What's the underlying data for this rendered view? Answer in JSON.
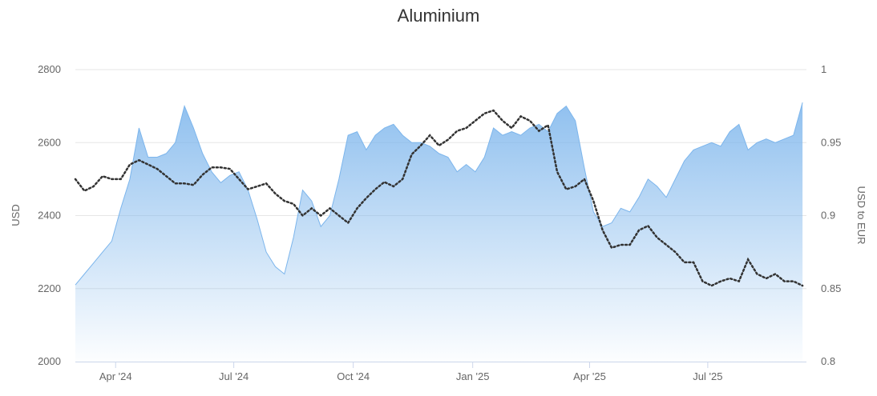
{
  "chart_data": {
    "type": "area",
    "title": "Aluminium",
    "grid": true,
    "legend": "none",
    "x_axis": {
      "range": [
        "2024-03-01",
        "2025-09-15"
      ],
      "ticks": [
        {
          "date": "2024-04-01",
          "label": "Apr '24"
        },
        {
          "date": "2024-07-01",
          "label": "Jul '24"
        },
        {
          "date": "2024-10-01",
          "label": "Oct '24"
        },
        {
          "date": "2025-01-01",
          "label": "Jan '25"
        },
        {
          "date": "2025-04-01",
          "label": "Apr '25"
        },
        {
          "date": "2025-07-01",
          "label": "Jul '25"
        }
      ]
    },
    "y_axis_left": {
      "title": "USD",
      "range": [
        2000,
        2800
      ],
      "ticks": [
        2000,
        2200,
        2400,
        2600,
        2800
      ]
    },
    "y_axis_right": {
      "title": "USD to EUR",
      "range": [
        0.8,
        1
      ],
      "ticks": [
        "0.8",
        "0.85",
        "0.9",
        "0.95",
        "1"
      ]
    },
    "series": [
      {
        "axis": "left",
        "style": "area",
        "color": "#7cb5ec",
        "points": [
          [
            "2024-03-01",
            2210
          ],
          [
            "2024-03-08",
            2240
          ],
          [
            "2024-03-15",
            2270
          ],
          [
            "2024-03-22",
            2300
          ],
          [
            "2024-03-29",
            2330
          ],
          [
            "2024-04-05",
            2420
          ],
          [
            "2024-04-12",
            2500
          ],
          [
            "2024-04-19",
            2640
          ],
          [
            "2024-04-26",
            2560
          ],
          [
            "2024-05-03",
            2560
          ],
          [
            "2024-05-10",
            2570
          ],
          [
            "2024-05-17",
            2600
          ],
          [
            "2024-05-24",
            2700
          ],
          [
            "2024-05-31",
            2640
          ],
          [
            "2024-06-07",
            2570
          ],
          [
            "2024-06-14",
            2520
          ],
          [
            "2024-06-21",
            2490
          ],
          [
            "2024-06-28",
            2510
          ],
          [
            "2024-07-05",
            2520
          ],
          [
            "2024-07-12",
            2470
          ],
          [
            "2024-07-19",
            2390
          ],
          [
            "2024-07-26",
            2300
          ],
          [
            "2024-08-02",
            2260
          ],
          [
            "2024-08-09",
            2240
          ],
          [
            "2024-08-16",
            2340
          ],
          [
            "2024-08-23",
            2470
          ],
          [
            "2024-08-30",
            2440
          ],
          [
            "2024-09-06",
            2370
          ],
          [
            "2024-09-13",
            2400
          ],
          [
            "2024-09-20",
            2500
          ],
          [
            "2024-09-27",
            2620
          ],
          [
            "2024-10-04",
            2630
          ],
          [
            "2024-10-11",
            2580
          ],
          [
            "2024-10-18",
            2620
          ],
          [
            "2024-10-25",
            2640
          ],
          [
            "2024-11-01",
            2650
          ],
          [
            "2024-11-08",
            2620
          ],
          [
            "2024-11-15",
            2600
          ],
          [
            "2024-11-22",
            2600
          ],
          [
            "2024-11-29",
            2590
          ],
          [
            "2024-12-06",
            2570
          ],
          [
            "2024-12-13",
            2560
          ],
          [
            "2024-12-20",
            2520
          ],
          [
            "2024-12-27",
            2540
          ],
          [
            "2025-01-03",
            2520
          ],
          [
            "2025-01-10",
            2560
          ],
          [
            "2025-01-17",
            2640
          ],
          [
            "2025-01-24",
            2620
          ],
          [
            "2025-01-31",
            2630
          ],
          [
            "2025-02-07",
            2620
          ],
          [
            "2025-02-14",
            2640
          ],
          [
            "2025-02-21",
            2650
          ],
          [
            "2025-02-28",
            2630
          ],
          [
            "2025-03-07",
            2680
          ],
          [
            "2025-03-14",
            2700
          ],
          [
            "2025-03-21",
            2660
          ],
          [
            "2025-03-28",
            2530
          ],
          [
            "2025-04-04",
            2410
          ],
          [
            "2025-04-11",
            2370
          ],
          [
            "2025-04-18",
            2380
          ],
          [
            "2025-04-25",
            2420
          ],
          [
            "2025-05-02",
            2410
          ],
          [
            "2025-05-09",
            2450
          ],
          [
            "2025-05-16",
            2500
          ],
          [
            "2025-05-23",
            2480
          ],
          [
            "2025-05-30",
            2450
          ],
          [
            "2025-06-06",
            2500
          ],
          [
            "2025-06-13",
            2550
          ],
          [
            "2025-06-20",
            2580
          ],
          [
            "2025-06-27",
            2590
          ],
          [
            "2025-07-04",
            2600
          ],
          [
            "2025-07-11",
            2590
          ],
          [
            "2025-07-18",
            2630
          ],
          [
            "2025-07-25",
            2650
          ],
          [
            "2025-08-01",
            2580
          ],
          [
            "2025-08-08",
            2600
          ],
          [
            "2025-08-15",
            2610
          ],
          [
            "2025-08-22",
            2600
          ],
          [
            "2025-08-29",
            2610
          ],
          [
            "2025-09-05",
            2620
          ],
          [
            "2025-09-12",
            2710
          ]
        ]
      },
      {
        "axis": "right",
        "style": "dotted-line",
        "color": "#333333",
        "points": [
          [
            "2024-03-01",
            0.925
          ],
          [
            "2024-03-08",
            0.917
          ],
          [
            "2024-03-15",
            0.92
          ],
          [
            "2024-03-22",
            0.927
          ],
          [
            "2024-03-29",
            0.925
          ],
          [
            "2024-04-05",
            0.925
          ],
          [
            "2024-04-12",
            0.935
          ],
          [
            "2024-04-19",
            0.938
          ],
          [
            "2024-04-26",
            0.935
          ],
          [
            "2024-05-03",
            0.932
          ],
          [
            "2024-05-10",
            0.927
          ],
          [
            "2024-05-17",
            0.922
          ],
          [
            "2024-05-24",
            0.922
          ],
          [
            "2024-05-31",
            0.921
          ],
          [
            "2024-06-07",
            0.928
          ],
          [
            "2024-06-14",
            0.933
          ],
          [
            "2024-06-21",
            0.933
          ],
          [
            "2024-06-28",
            0.932
          ],
          [
            "2024-07-05",
            0.925
          ],
          [
            "2024-07-12",
            0.918
          ],
          [
            "2024-07-19",
            0.92
          ],
          [
            "2024-07-26",
            0.922
          ],
          [
            "2024-08-02",
            0.915
          ],
          [
            "2024-08-09",
            0.91
          ],
          [
            "2024-08-16",
            0.908
          ],
          [
            "2024-08-23",
            0.9
          ],
          [
            "2024-08-30",
            0.905
          ],
          [
            "2024-09-06",
            0.9
          ],
          [
            "2024-09-13",
            0.905
          ],
          [
            "2024-09-20",
            0.9
          ],
          [
            "2024-09-27",
            0.895
          ],
          [
            "2024-10-04",
            0.905
          ],
          [
            "2024-10-11",
            0.912
          ],
          [
            "2024-10-18",
            0.918
          ],
          [
            "2024-10-25",
            0.923
          ],
          [
            "2024-11-01",
            0.92
          ],
          [
            "2024-11-08",
            0.925
          ],
          [
            "2024-11-15",
            0.942
          ],
          [
            "2024-11-22",
            0.948
          ],
          [
            "2024-11-29",
            0.955
          ],
          [
            "2024-12-06",
            0.948
          ],
          [
            "2024-12-13",
            0.952
          ],
          [
            "2024-12-20",
            0.958
          ],
          [
            "2024-12-27",
            0.96
          ],
          [
            "2025-01-03",
            0.965
          ],
          [
            "2025-01-10",
            0.97
          ],
          [
            "2025-01-17",
            0.972
          ],
          [
            "2025-01-24",
            0.965
          ],
          [
            "2025-01-31",
            0.96
          ],
          [
            "2025-02-07",
            0.968
          ],
          [
            "2025-02-14",
            0.965
          ],
          [
            "2025-02-21",
            0.958
          ],
          [
            "2025-02-28",
            0.962
          ],
          [
            "2025-03-07",
            0.93
          ],
          [
            "2025-03-14",
            0.918
          ],
          [
            "2025-03-21",
            0.92
          ],
          [
            "2025-03-28",
            0.925
          ],
          [
            "2025-04-04",
            0.91
          ],
          [
            "2025-04-11",
            0.89
          ],
          [
            "2025-04-18",
            0.878
          ],
          [
            "2025-04-25",
            0.88
          ],
          [
            "2025-05-02",
            0.88
          ],
          [
            "2025-05-09",
            0.89
          ],
          [
            "2025-05-16",
            0.893
          ],
          [
            "2025-05-23",
            0.885
          ],
          [
            "2025-05-30",
            0.88
          ],
          [
            "2025-06-06",
            0.875
          ],
          [
            "2025-06-13",
            0.868
          ],
          [
            "2025-06-20",
            0.868
          ],
          [
            "2025-06-27",
            0.855
          ],
          [
            "2025-07-04",
            0.852
          ],
          [
            "2025-07-11",
            0.855
          ],
          [
            "2025-07-18",
            0.857
          ],
          [
            "2025-07-25",
            0.855
          ],
          [
            "2025-08-01",
            0.87
          ],
          [
            "2025-08-08",
            0.86
          ],
          [
            "2025-08-15",
            0.857
          ],
          [
            "2025-08-22",
            0.86
          ],
          [
            "2025-08-29",
            0.855
          ],
          [
            "2025-09-05",
            0.855
          ],
          [
            "2025-09-12",
            0.852
          ]
        ]
      }
    ]
  }
}
